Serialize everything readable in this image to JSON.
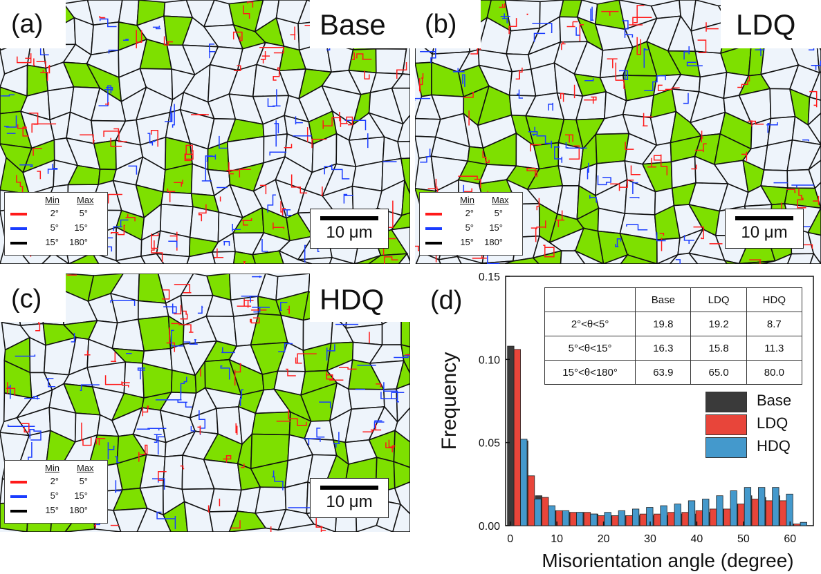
{
  "panels": [
    {
      "id": "a",
      "label": "(a)",
      "name": "Base"
    },
    {
      "id": "b",
      "label": "(b)",
      "name": "LDQ"
    },
    {
      "id": "c",
      "label": "(c)",
      "name": "HDQ"
    }
  ],
  "map_legend": {
    "min_header": "Min",
    "max_header": "Max",
    "rows": [
      {
        "color": "#ff1a1a",
        "min": "2°",
        "max": "5°"
      },
      {
        "color": "#1a3cff",
        "min": "5°",
        "max": "15°"
      },
      {
        "color": "#000000",
        "min": "15°",
        "max": "180°"
      }
    ]
  },
  "scale_bar": "10 μm",
  "colors": {
    "grain": "#eef4fb",
    "phase": "#7ee000",
    "boundary": "#111111",
    "low": "#ff1a1a",
    "mid": "#1a3cff"
  },
  "table": {
    "headers": [
      "",
      "Base",
      "LDQ",
      "HDQ"
    ],
    "rows": [
      [
        "2°<θ<5°",
        "19.8",
        "19.2",
        "8.7"
      ],
      [
        "5°<θ<15°",
        "16.3",
        "15.8",
        "11.3"
      ],
      [
        "15°<θ<180°",
        "63.9",
        "65.0",
        "80.0"
      ]
    ]
  },
  "chart_data": {
    "type": "bar",
    "panel_label": "(d)",
    "xlabel": "Misorientation angle (degree)",
    "ylabel": "Frequency",
    "xlim": [
      -1,
      65
    ],
    "ylim": [
      0,
      0.15
    ],
    "xticks": [
      0,
      10,
      20,
      30,
      40,
      50,
      60
    ],
    "yticks": [
      0.0,
      0.05,
      0.1,
      0.15
    ],
    "ytick_labels": [
      "0.00",
      "0.05",
      "0.10",
      "0.15"
    ],
    "bin_centers": [
      1.5,
      4.5,
      7.5,
      10.5,
      13.5,
      16.5,
      19.5,
      22.5,
      25.5,
      28.5,
      31.5,
      34.5,
      37.5,
      40.5,
      43.5,
      46.5,
      49.5,
      52.5,
      55.5,
      58.5,
      61.5
    ],
    "bar_width": 1.4,
    "series": [
      {
        "name": "Base",
        "color": "#3a3a3a",
        "values": [
          0.108,
          0.051,
          0.018,
          0.009,
          0.008,
          0.008,
          0.007,
          0.006,
          0.006,
          0.006,
          0.006,
          0.006,
          0.007,
          0.007,
          0.008,
          0.01,
          0.013,
          0.018,
          0.017,
          0.018,
          0.001
        ]
      },
      {
        "name": "LDQ",
        "color": "#e8453a",
        "values": [
          0.106,
          0.03,
          0.017,
          0.009,
          0.008,
          0.008,
          0.006,
          0.006,
          0.006,
          0.007,
          0.007,
          0.008,
          0.008,
          0.009,
          0.01,
          0.01,
          0.013,
          0.016,
          0.015,
          0.015,
          0.001
        ]
      },
      {
        "name": "HDQ",
        "color": "#4499cc",
        "values": [
          0.052,
          0.016,
          0.012,
          0.009,
          0.008,
          0.007,
          0.008,
          0.009,
          0.01,
          0.011,
          0.012,
          0.013,
          0.015,
          0.016,
          0.018,
          0.021,
          0.023,
          0.023,
          0.023,
          0.019,
          0.002
        ]
      }
    ]
  }
}
